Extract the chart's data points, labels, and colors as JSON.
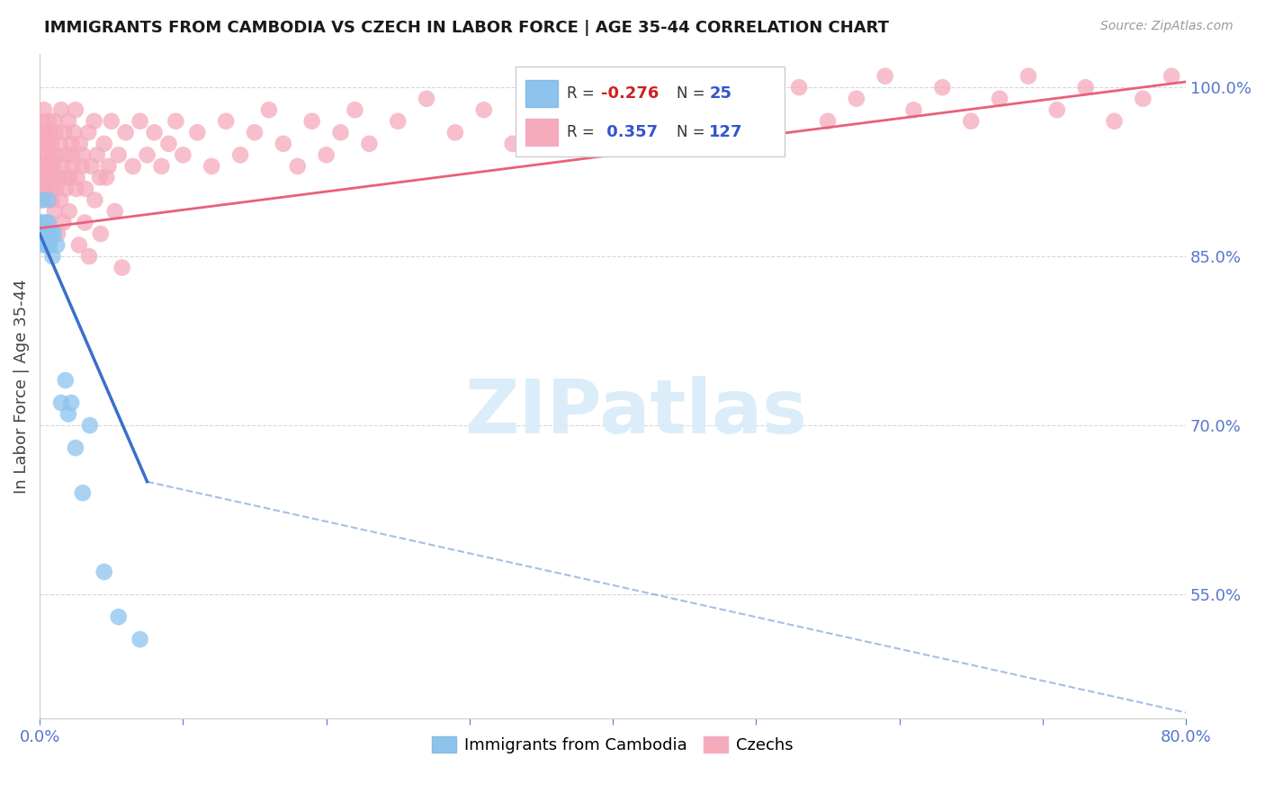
{
  "title": "IMMIGRANTS FROM CAMBODIA VS CZECH IN LABOR FORCE | AGE 35-44 CORRELATION CHART",
  "source": "Source: ZipAtlas.com",
  "ylabel": "In Labor Force | Age 35-44",
  "legend_r_cambodia": "-0.276",
  "legend_n_cambodia": "25",
  "legend_r_czech": "0.357",
  "legend_n_czech": "127",
  "cambodia_color": "#8CC4EE",
  "czech_color": "#F5AABC",
  "trend_cambodia_color": "#3B6FCC",
  "trend_czech_color": "#E8607A",
  "background_color": "#ffffff",
  "grid_color": "#d8d8d8",
  "xmin": 0.0,
  "xmax": 80.0,
  "ymin": 44.0,
  "ymax": 103.0,
  "right_yticks": [
    55.0,
    70.0,
    85.0,
    100.0
  ],
  "right_yticklabels": [
    "55.0%",
    "70.0%",
    "85.0%",
    "100.0%"
  ],
  "cambodia_x": [
    0.1,
    0.2,
    0.3,
    0.3,
    0.4,
    0.4,
    0.5,
    0.5,
    0.6,
    0.6,
    0.7,
    0.8,
    0.9,
    1.0,
    1.2,
    1.5,
    1.8,
    2.0,
    2.2,
    2.5,
    3.0,
    3.5,
    4.5,
    5.5,
    7.0
  ],
  "cambodia_y": [
    88,
    90,
    87,
    86,
    87,
    88,
    87,
    86,
    88,
    90,
    86,
    87,
    85,
    87,
    86,
    72,
    74,
    71,
    72,
    68,
    64,
    70,
    57,
    53,
    51
  ],
  "czech_x": [
    0.1,
    0.1,
    0.2,
    0.2,
    0.2,
    0.3,
    0.3,
    0.3,
    0.4,
    0.4,
    0.5,
    0.5,
    0.5,
    0.6,
    0.6,
    0.7,
    0.7,
    0.8,
    0.8,
    0.9,
    1.0,
    1.0,
    1.1,
    1.2,
    1.3,
    1.4,
    1.5,
    1.6,
    1.7,
    1.8,
    1.9,
    2.0,
    2.1,
    2.2,
    2.3,
    2.4,
    2.5,
    2.6,
    2.8,
    3.0,
    3.2,
    3.4,
    3.6,
    3.8,
    4.0,
    4.2,
    4.5,
    4.8,
    5.0,
    5.5,
    6.0,
    6.5,
    7.0,
    7.5,
    8.0,
    8.5,
    9.0,
    9.5,
    10.0,
    11.0,
    12.0,
    13.0,
    14.0,
    15.0,
    16.0,
    17.0,
    18.0,
    19.0,
    20.0,
    21.0,
    22.0,
    23.0,
    25.0,
    27.0,
    29.0,
    31.0,
    33.0,
    35.0,
    37.0,
    39.0,
    41.0,
    43.0,
    45.0,
    47.0,
    49.0,
    51.0,
    53.0,
    55.0,
    57.0,
    59.0,
    61.0,
    63.0,
    65.0,
    67.0,
    69.0,
    71.0,
    73.0,
    75.0,
    77.0,
    79.0,
    0.15,
    0.25,
    0.35,
    0.45,
    0.55,
    0.65,
    0.75,
    0.85,
    0.95,
    1.05,
    1.15,
    1.25,
    1.45,
    1.65,
    1.85,
    2.05,
    2.25,
    2.55,
    2.75,
    2.95,
    3.15,
    3.45,
    3.85,
    4.25,
    4.65,
    5.25,
    5.75
  ],
  "czech_y": [
    93,
    88,
    97,
    95,
    91,
    98,
    96,
    93,
    95,
    92,
    96,
    94,
    91,
    97,
    93,
    96,
    92,
    95,
    91,
    94,
    97,
    93,
    96,
    94,
    92,
    95,
    98,
    93,
    96,
    91,
    94,
    97,
    92,
    95,
    93,
    96,
    98,
    92,
    95,
    94,
    91,
    96,
    93,
    97,
    94,
    92,
    95,
    93,
    97,
    94,
    96,
    93,
    97,
    94,
    96,
    93,
    95,
    97,
    94,
    96,
    93,
    97,
    94,
    96,
    98,
    95,
    93,
    97,
    94,
    96,
    98,
    95,
    97,
    99,
    96,
    98,
    95,
    97,
    99,
    96,
    98,
    100,
    97,
    99,
    96,
    98,
    100,
    97,
    99,
    101,
    98,
    100,
    97,
    99,
    101,
    98,
    100,
    97,
    99,
    101,
    90,
    92,
    94,
    91,
    95,
    88,
    93,
    90,
    92,
    89,
    91,
    87,
    90,
    88,
    92,
    89,
    94,
    91,
    86,
    93,
    88,
    85,
    90,
    87,
    92,
    89,
    84
  ],
  "cam_trend_x0": 0.0,
  "cam_trend_y0": 87.0,
  "cam_trend_x1": 7.5,
  "cam_trend_y1": 65.0,
  "cam_dash_x0": 7.5,
  "cam_dash_y0": 65.0,
  "cam_dash_x1": 80.0,
  "cam_dash_y1": 44.5,
  "cze_trend_x0": 0.0,
  "cze_trend_y0": 87.5,
  "cze_trend_x1": 80.0,
  "cze_trend_y1": 100.5,
  "watermark_text": "ZIPatlas",
  "watermark_color": "#d8ecf8",
  "title_fontsize": 13,
  "source_fontsize": 10,
  "tick_color": "#5577CC",
  "ylabel_color": "#444444"
}
